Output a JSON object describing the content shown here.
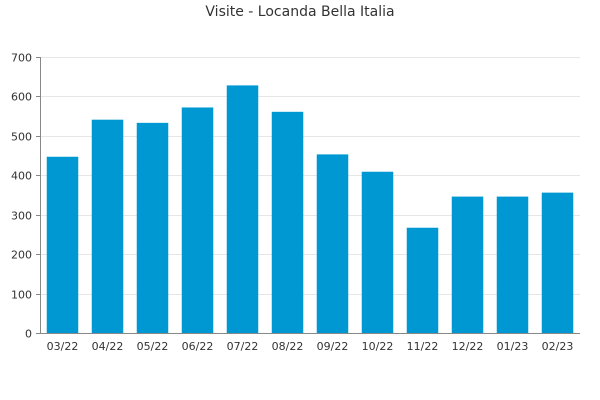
{
  "chart_data": {
    "type": "bar",
    "title": "Visite - Locanda Bella Italia",
    "xlabel": "",
    "ylabel": "",
    "categories": [
      "03/22",
      "04/22",
      "05/22",
      "06/22",
      "07/22",
      "08/22",
      "09/22",
      "10/22",
      "11/22",
      "12/22",
      "01/23",
      "02/23"
    ],
    "values": [
      447,
      541,
      533,
      572,
      628,
      561,
      453,
      409,
      267,
      346,
      346,
      356
    ],
    "ylim": [
      0,
      700
    ],
    "yticks": [
      0,
      100,
      200,
      300,
      400,
      500,
      600,
      700
    ],
    "grid": true,
    "legend": "none",
    "bar_color": "#0098d2",
    "axis_color": "#888888",
    "grid_color": "#e6e6e6"
  }
}
